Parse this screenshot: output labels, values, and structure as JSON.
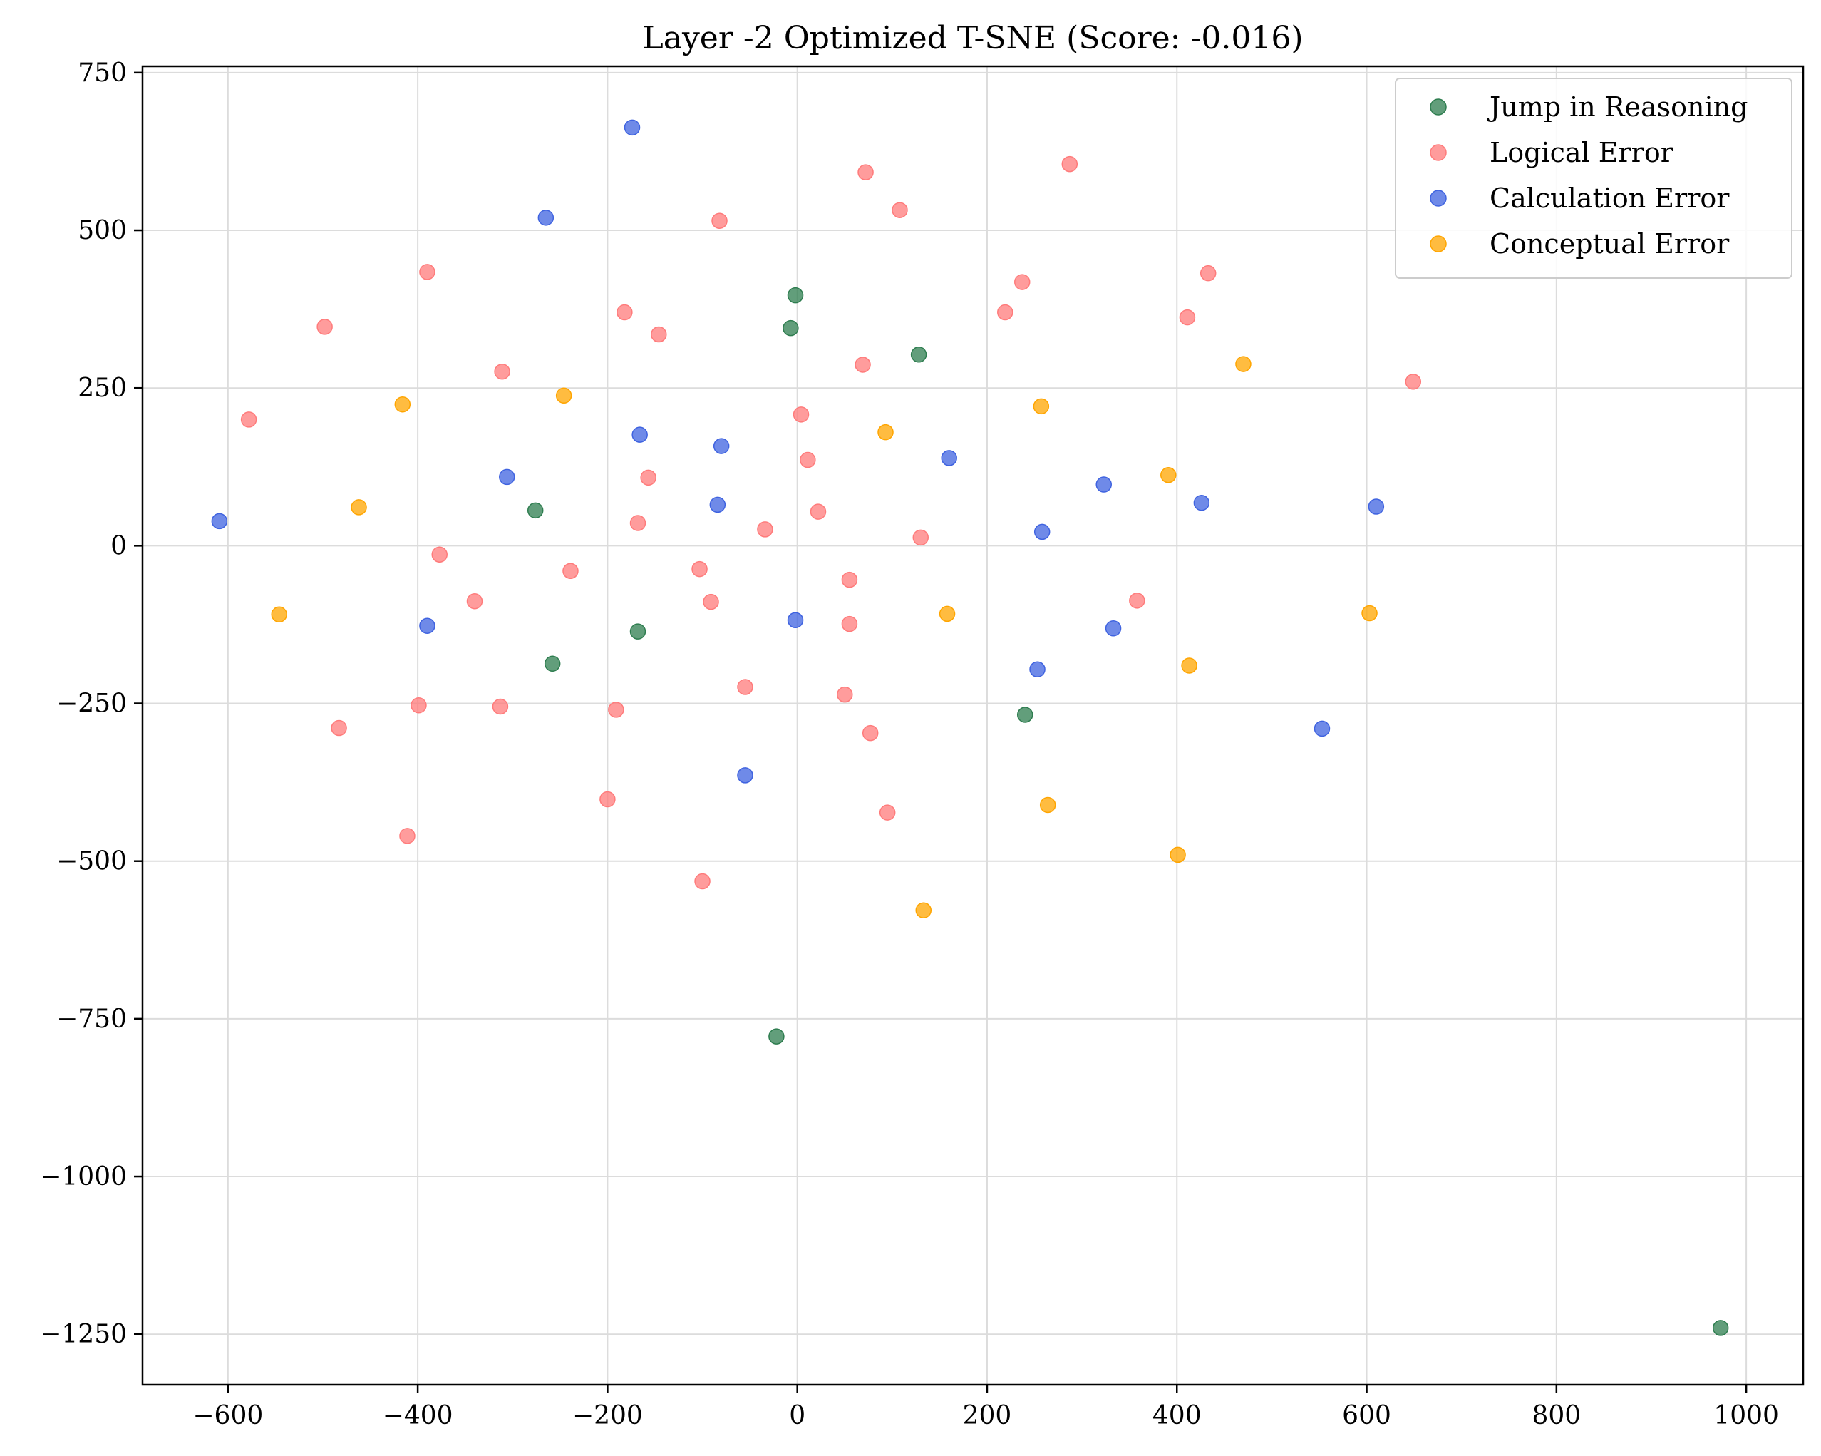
{
  "chart_data": {
    "type": "scatter",
    "title": "Layer -2 Optimized T-SNE (Score: -0.016)",
    "xlabel": "",
    "ylabel": "",
    "xlim": [
      -690,
      1060
    ],
    "ylim": [
      -1330,
      760
    ],
    "x_ticks": [
      -600,
      -400,
      -200,
      0,
      200,
      400,
      600,
      800,
      1000
    ],
    "x_tick_labels": [
      "−600",
      "−400",
      "−200",
      "0",
      "200",
      "400",
      "600",
      "800",
      "1000"
    ],
    "y_ticks": [
      750,
      500,
      250,
      0,
      -250,
      -500,
      -750,
      -1000,
      -1250
    ],
    "y_tick_labels": [
      "750",
      "500",
      "250",
      "0",
      "−250",
      "−500",
      "−750",
      "−1000",
      "−1250"
    ],
    "grid": true,
    "legend_position": "top-right",
    "series": [
      {
        "name": "Jump in Reasoning",
        "color": "#2e7d4f",
        "points": [
          [
            -2,
            397
          ],
          [
            -7,
            345
          ],
          [
            128,
            303
          ],
          [
            -276,
            56
          ],
          [
            -168,
            -136
          ],
          [
            -258,
            -187
          ],
          [
            240,
            -268
          ],
          [
            -22,
            -778
          ],
          [
            973,
            -1240
          ]
        ]
      },
      {
        "name": "Logical Error",
        "color": "#ff7b7b",
        "points": [
          [
            72,
            592
          ],
          [
            287,
            605
          ],
          [
            -82,
            515
          ],
          [
            108,
            532
          ],
          [
            -390,
            434
          ],
          [
            237,
            418
          ],
          [
            433,
            432
          ],
          [
            -498,
            347
          ],
          [
            -182,
            370
          ],
          [
            219,
            370
          ],
          [
            411,
            362
          ],
          [
            -146,
            335
          ],
          [
            -311,
            276
          ],
          [
            69,
            287
          ],
          [
            649,
            260
          ],
          [
            -578,
            200
          ],
          [
            4,
            208
          ],
          [
            11,
            136
          ],
          [
            -157,
            108
          ],
          [
            -168,
            36
          ],
          [
            22,
            54
          ],
          [
            -34,
            26
          ],
          [
            130,
            13
          ],
          [
            -377,
            -14
          ],
          [
            -239,
            -40
          ],
          [
            -103,
            -37
          ],
          [
            55,
            -54
          ],
          [
            -340,
            -88
          ],
          [
            -91,
            -89
          ],
          [
            358,
            -87
          ],
          [
            55,
            -124
          ],
          [
            -55,
            -224
          ],
          [
            -399,
            -253
          ],
          [
            -313,
            -255
          ],
          [
            -191,
            -260
          ],
          [
            50,
            -236
          ],
          [
            -483,
            -289
          ],
          [
            77,
            -297
          ],
          [
            -200,
            -402
          ],
          [
            95,
            -423
          ],
          [
            -411,
            -460
          ],
          [
            -100,
            -532
          ]
        ]
      },
      {
        "name": "Calculation Error",
        "color": "#3f63e0",
        "points": [
          [
            -174,
            663
          ],
          [
            -265,
            520
          ],
          [
            -166,
            176
          ],
          [
            -80,
            158
          ],
          [
            160,
            139
          ],
          [
            -306,
            109
          ],
          [
            -84,
            65
          ],
          [
            323,
            97
          ],
          [
            426,
            68
          ],
          [
            610,
            62
          ],
          [
            -609,
            39
          ],
          [
            258,
            22
          ],
          [
            -390,
            -127
          ],
          [
            -2,
            -118
          ],
          [
            333,
            -131
          ],
          [
            253,
            -196
          ],
          [
            553,
            -290
          ],
          [
            -55,
            -364
          ]
        ]
      },
      {
        "name": "Conceptual Error",
        "color": "#ffa500",
        "points": [
          [
            -416,
            224
          ],
          [
            -246,
            238
          ],
          [
            257,
            221
          ],
          [
            93,
            180
          ],
          [
            470,
            288
          ],
          [
            -462,
            61
          ],
          [
            391,
            112
          ],
          [
            -546,
            -109
          ],
          [
            158,
            -108
          ],
          [
            603,
            -107
          ],
          [
            413,
            -190
          ],
          [
            264,
            -411
          ],
          [
            133,
            -578
          ],
          [
            401,
            -490
          ]
        ]
      }
    ]
  }
}
